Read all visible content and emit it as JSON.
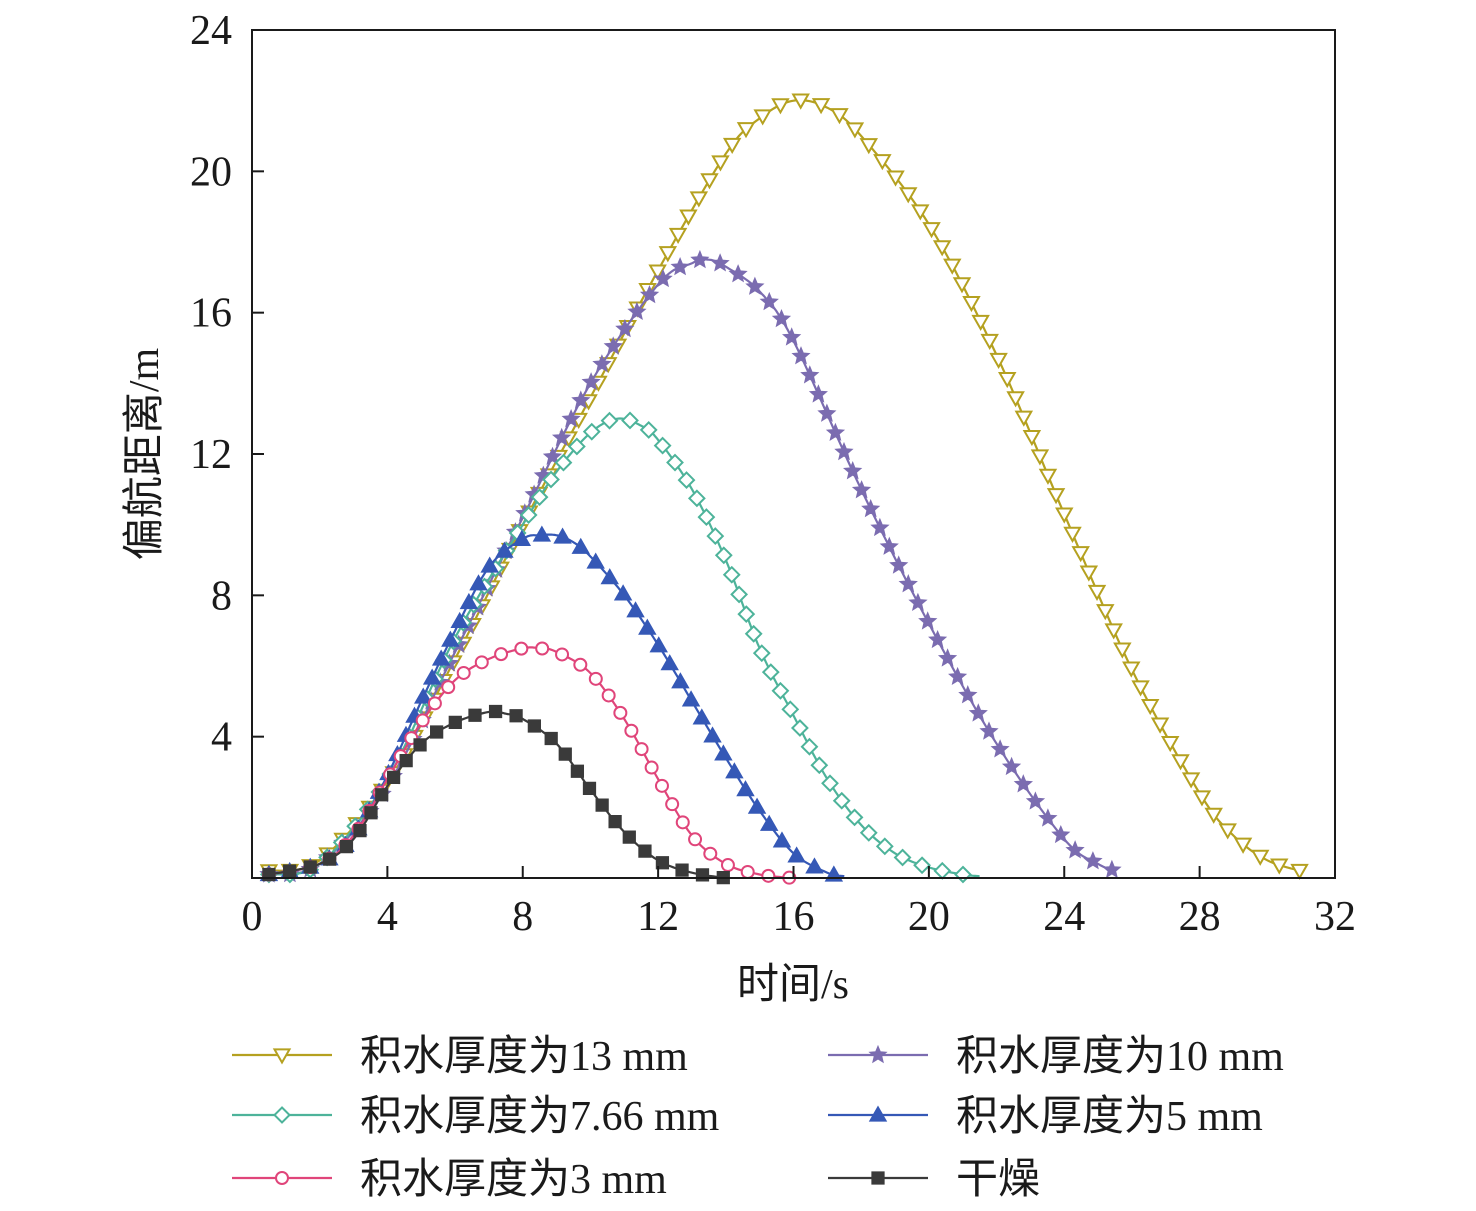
{
  "chart_data": {
    "type": "line",
    "xlabel": "时间/s",
    "ylabel": "偏航距离/m",
    "xlim": [
      0,
      32
    ],
    "ylim": [
      0,
      24
    ],
    "xticks": [
      "0",
      "4",
      "8",
      "12",
      "16",
      "20",
      "24",
      "28",
      "32"
    ],
    "yticks": [
      "4",
      "8",
      "12",
      "16",
      "20",
      "24"
    ],
    "grid": false,
    "legend_position": "bottom",
    "series": [
      {
        "name": "积水厚度为13 mm",
        "color": "#b5a120",
        "marker": "triangle-down-open",
        "x": [
          0.5,
          2,
          4,
          6,
          8,
          10,
          12,
          14,
          15,
          16,
          17,
          18,
          20,
          22,
          24,
          26,
          28,
          29,
          30,
          31
        ],
        "y": [
          0.2,
          0.5,
          2.7,
          6.2,
          10.0,
          13.6,
          17.2,
          20.5,
          21.5,
          22.0,
          21.8,
          21.0,
          18.5,
          14.8,
          10.3,
          5.9,
          2.4,
          1.2,
          0.5,
          0.2
        ]
      },
      {
        "name": "积水厚度为10 mm",
        "color": "#7b6cb0",
        "marker": "star",
        "x": [
          0.5,
          2,
          4,
          6,
          8,
          10,
          12,
          13,
          13.5,
          14,
          15,
          16,
          18,
          20,
          22,
          24,
          25,
          25.5
        ],
        "y": [
          0.1,
          0.4,
          2.6,
          6.4,
          10.2,
          14.0,
          16.8,
          17.4,
          17.5,
          17.3,
          16.6,
          15.2,
          11.0,
          7.2,
          3.8,
          1.1,
          0.4,
          0.2
        ]
      },
      {
        "name": "积水厚度为7.66 mm",
        "color": "#4db39a",
        "marker": "diamond-open",
        "x": [
          0.5,
          2,
          4,
          6,
          8,
          9,
          10,
          10.8,
          11.5,
          12,
          13,
          14,
          15,
          16,
          17,
          18,
          19,
          20,
          21,
          21.5
        ],
        "y": [
          0.1,
          0.4,
          2.8,
          6.8,
          10.0,
          11.5,
          12.6,
          13.0,
          12.8,
          12.4,
          11.0,
          9.0,
          6.5,
          4.6,
          2.8,
          1.5,
          0.7,
          0.3,
          0.1,
          0.05
        ]
      },
      {
        "name": "积水厚度为5 mm",
        "color": "#3558b6",
        "marker": "triangle-up",
        "x": [
          0.5,
          2,
          3,
          4,
          5,
          6,
          7,
          8,
          8.5,
          9,
          9.5,
          10,
          11,
          12,
          13,
          14,
          15,
          16,
          17,
          17.5
        ],
        "y": [
          0.1,
          0.4,
          1.2,
          2.9,
          5.0,
          7.0,
          8.8,
          9.6,
          9.7,
          9.7,
          9.5,
          9.1,
          8.0,
          6.6,
          5.0,
          3.4,
          1.9,
          0.7,
          0.15,
          0.05
        ]
      },
      {
        "name": "积水厚度为3 mm",
        "color": "#e0457a",
        "marker": "circle-open",
        "x": [
          0.5,
          2,
          3,
          4,
          5,
          6,
          7,
          8,
          8.5,
          9,
          10,
          11,
          12,
          13,
          14,
          15,
          16
        ],
        "y": [
          0.1,
          0.4,
          1.2,
          2.8,
          4.4,
          5.6,
          6.2,
          6.5,
          6.5,
          6.4,
          5.8,
          4.5,
          2.8,
          1.2,
          0.4,
          0.1,
          0.0
        ]
      },
      {
        "name": "干燥",
        "color": "#3a3a3a",
        "marker": "square",
        "x": [
          0.5,
          2,
          3,
          4,
          5,
          6,
          7,
          7.5,
          8,
          9,
          10,
          11,
          12,
          13,
          14
        ],
        "y": [
          0.1,
          0.4,
          1.1,
          2.6,
          3.8,
          4.4,
          4.7,
          4.65,
          4.5,
          3.8,
          2.5,
          1.3,
          0.5,
          0.15,
          0.0
        ]
      }
    ]
  }
}
